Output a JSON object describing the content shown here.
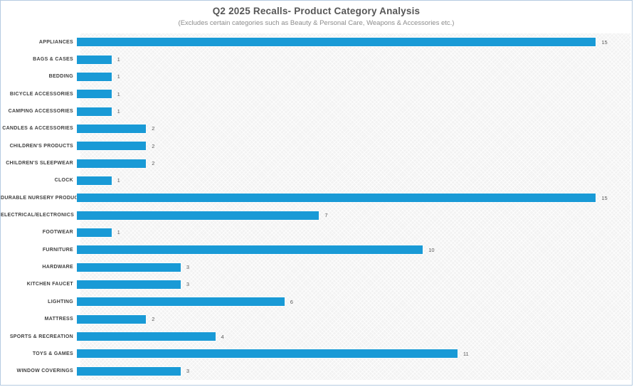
{
  "window": {
    "background": "#ffffff",
    "border_color": "#b5cbe1"
  },
  "colors": {
    "bar": "#199ad6",
    "title_text": "#565656",
    "subtitle_text": "#8c8c8c",
    "category_label_text": "#3f3f3f",
    "value_label_text": "#595959",
    "plot_background": "#f2f2f2"
  },
  "chart_data": {
    "type": "bar",
    "orientation": "horizontal",
    "title": "Q2 2025 Recalls- Product Category Analysis",
    "subtitle": "(Excludes certain categories such as Beauty & Personal Care, Weapons & Accessories etc.)",
    "categories": [
      "APPLIANCES",
      "BAGS & CASES",
      "BEDDING",
      "BICYCLE ACCESSORIES",
      "CAMPING ACCESSORIES",
      "CANDLES & ACCESSORIES",
      "CHILDREN'S PRODUCTS",
      "CHILDREN'S SLEEPWEAR",
      "CLOCK",
      "DURABLE NURSERY PRODUCT",
      "ELECTRICAL/ELECTRONICS",
      "FOOTWEAR",
      "FURNITURE",
      "HARDWARE",
      "KITCHEN FAUCET",
      "LIGHTING",
      "MATTRESS",
      "SPORTS & RECREATION",
      "TOYS & GAMES",
      "WINDOW COVERINGS"
    ],
    "values": [
      15,
      1,
      1,
      1,
      1,
      2,
      2,
      2,
      1,
      15,
      7,
      1,
      10,
      3,
      3,
      6,
      2,
      4,
      11,
      3
    ],
    "xlabel": "",
    "ylabel": "",
    "xlim": [
      0,
      16
    ],
    "grid": false,
    "legend": false,
    "data_labels": true,
    "bar_color": "#199ad6"
  }
}
